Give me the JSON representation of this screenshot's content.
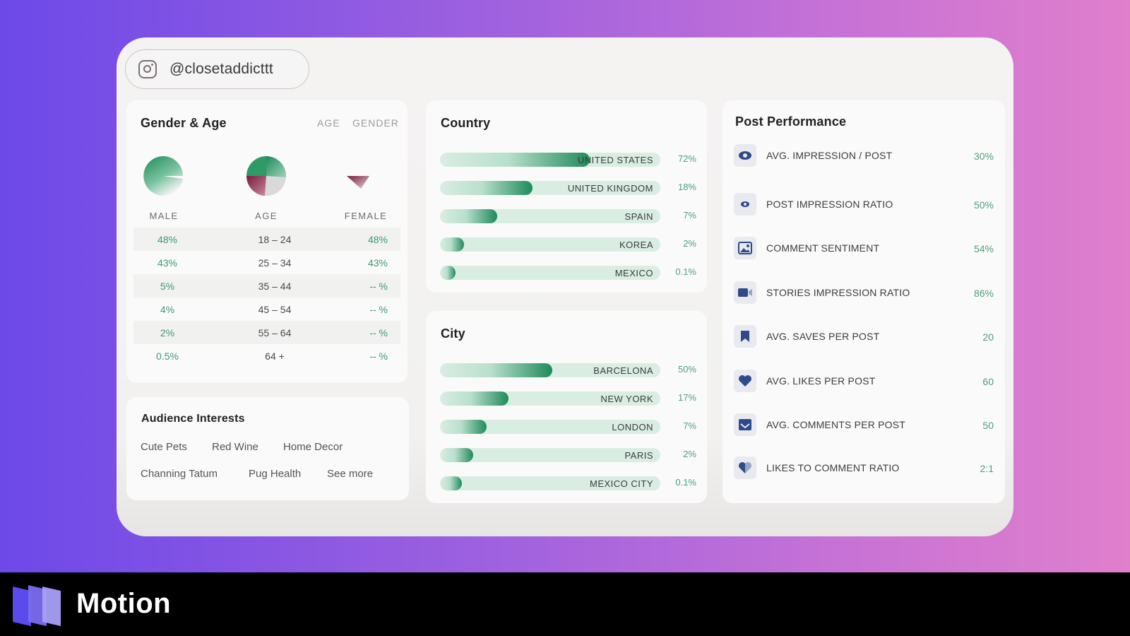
{
  "handle": {
    "text": "@closetaddicttt",
    "icon": "instagram-icon"
  },
  "gender_age": {
    "title": "Gender & Age",
    "tabs": [
      "AGE",
      "GENDER"
    ],
    "pie_labels": [
      "MALE",
      "AGE",
      "FEMALE"
    ],
    "rows": [
      {
        "male": "48%",
        "age": "18 – 24",
        "female": "48%"
      },
      {
        "male": "43%",
        "age": "25 – 34",
        "female": "43%"
      },
      {
        "male": "5%",
        "age": "35 – 44",
        "female": "-- %"
      },
      {
        "male": "4%",
        "age": "45 – 54",
        "female": "-- %"
      },
      {
        "male": "2%",
        "age": "55 – 64",
        "female": "-- %"
      },
      {
        "male": "0.5%",
        "age": "64 +",
        "female": "-- %"
      }
    ]
  },
  "interests": {
    "title": "Audience Interests",
    "items": [
      "Cute Pets",
      "Red Wine",
      "Home Decor",
      "Channing Tatum",
      "Pug Health",
      "See more"
    ]
  },
  "country": {
    "title": "Country",
    "rows": [
      {
        "label": "UNITED STATES",
        "pct": "72%",
        "fill": 0.68
      },
      {
        "label": "UNITED KINGDOM",
        "pct": "18%",
        "fill": 0.42
      },
      {
        "label": "SPAIN",
        "pct": "7%",
        "fill": 0.26
      },
      {
        "label": "KOREA",
        "pct": "2%",
        "fill": 0.11
      },
      {
        "label": "MEXICO",
        "pct": "0.1%",
        "fill": 0.07
      }
    ]
  },
  "city": {
    "title": "City",
    "rows": [
      {
        "label": "BARCELONA",
        "pct": "50%",
        "fill": 0.51
      },
      {
        "label": "NEW YORK",
        "pct": "17%",
        "fill": 0.31
      },
      {
        "label": "LONDON",
        "pct": "7%",
        "fill": 0.21
      },
      {
        "label": "PARIS",
        "pct": "2%",
        "fill": 0.15
      },
      {
        "label": "MEXICO CITY",
        "pct": "0.1%",
        "fill": 0.1
      }
    ]
  },
  "performance": {
    "title": "Post Performance",
    "rows": [
      {
        "label": "AVG. IMPRESSION / POST",
        "value": "30%",
        "icon": "eye-icon"
      },
      {
        "label": "POST IMPRESSION RATIO",
        "value": "50%",
        "icon": "eye-small-icon"
      },
      {
        "label": "COMMENT SENTIMENT",
        "value": "54%",
        "icon": "image-icon"
      },
      {
        "label": "STORIES IMPRESSION RATIO",
        "value": "86%",
        "icon": "video-camera-icon"
      },
      {
        "label": "AVG. SAVES PER POST",
        "value": "20",
        "icon": "bookmark-icon"
      },
      {
        "label": "AVG. LIKES PER POST",
        "value": "60",
        "icon": "heart-icon"
      },
      {
        "label": "AVG. COMMENTS PER POST",
        "value": "50",
        "icon": "inbox-icon"
      },
      {
        "label": "LIKES TO COMMENT RATIO",
        "value": "2:1",
        "icon": "heart-split-icon"
      }
    ]
  },
  "brand": {
    "name": "Motion",
    "logo": "motion-logo-icon"
  },
  "colors": {
    "green_dark": "#1f8a5a",
    "green_light": "#d9ede3",
    "pct_green": "#4aa07c",
    "maroon": "#7a1a3a",
    "icon_blue": "#2f4a8a"
  }
}
